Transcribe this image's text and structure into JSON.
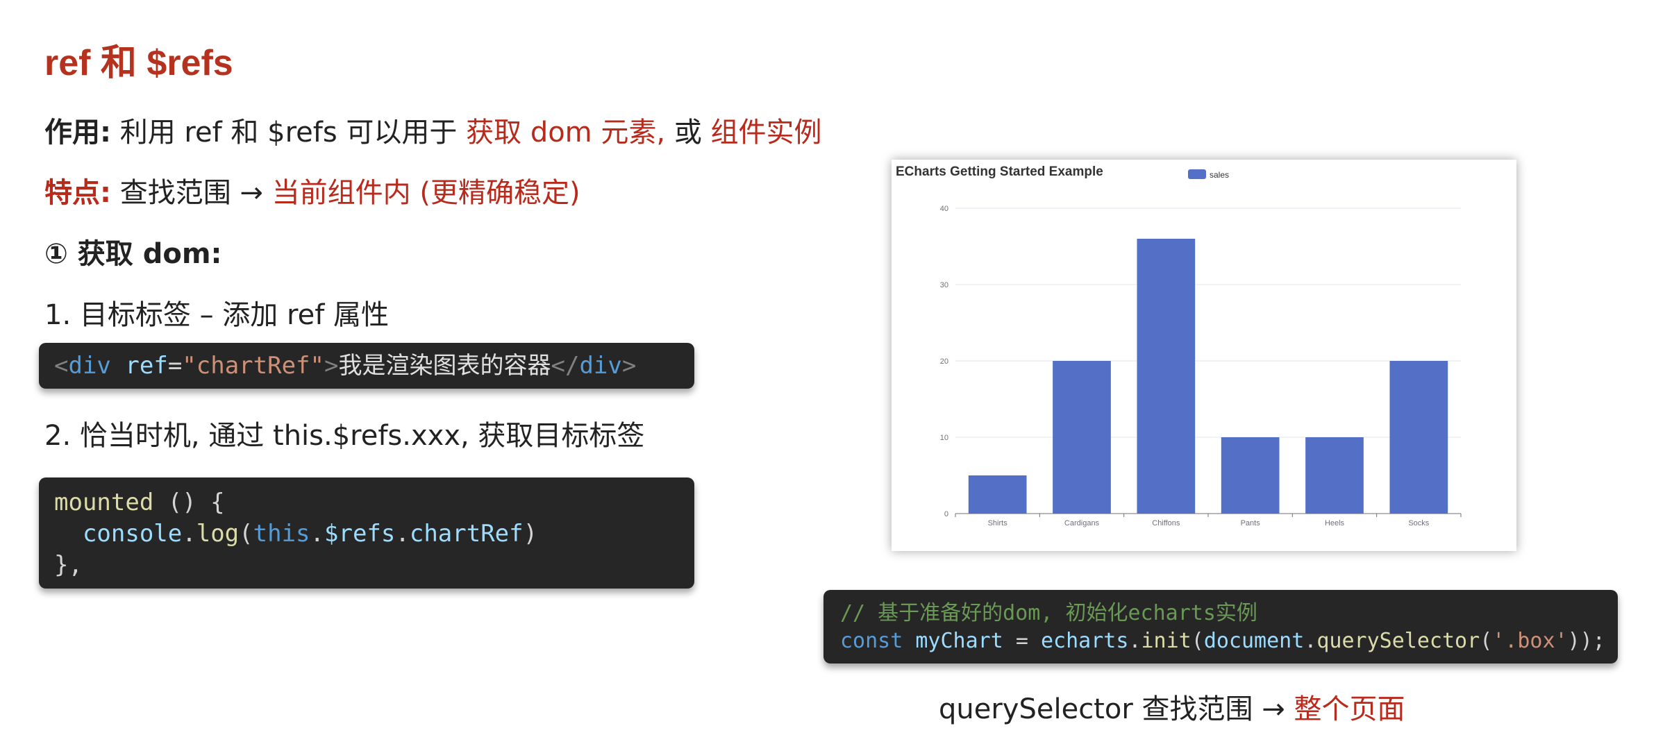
{
  "title": "ref 和 $refs",
  "usage": {
    "label": "作用:",
    "text": "利用 ref 和 $refs 可以用于",
    "highlight1": "获取 dom 元素,",
    "connector": "或",
    "highlight2": "组件实例"
  },
  "feature": {
    "label": "特点:",
    "text": "查找范围 →",
    "highlight": "当前组件内 (更精确稳定)"
  },
  "section": {
    "heading": "① 获取 dom:"
  },
  "step1": {
    "text": "1. 目标标签 – 添加 ref 属性"
  },
  "code1": {
    "lt": "<",
    "tag": "div",
    "attr": "ref",
    "eq": "=",
    "value": "\"chartRef\"",
    "gt": ">",
    "content": "我是渲染图表的容器",
    "close_lt": "</",
    "close_tag": "div",
    "close_gt": ">"
  },
  "step2": {
    "text": "2. 恰当时机, 通过 this.$refs.xxx, 获取目标标签"
  },
  "code2": {
    "line1_fn": "mounted",
    "line1_rest": " () {",
    "line2_indent": "  ",
    "line2_obj": "console",
    "line2_dot": ".",
    "line2_fn": "log",
    "line2_paren": "(",
    "line2_this": "this",
    "line2_dot2": ".",
    "line2_refs": "$refs",
    "line2_dot3": ".",
    "line2_prop": "chartRef",
    "line2_end": ")",
    "line3": "},"
  },
  "code3": {
    "comment": "// 基于准备好的dom, 初始化echarts实例",
    "kw": "const",
    "var": "myChart",
    "eq": " = ",
    "obj": "echarts",
    "dot": ".",
    "fn": "init",
    "paren": "(",
    "doc": "document",
    "dot2": ".",
    "fn2": "querySelector",
    "paren2": "(",
    "str": "'.box'",
    "end": "));"
  },
  "bottom_note": {
    "text": "querySelector 查找范围 →",
    "highlight": "整个页面"
  },
  "chart_data": {
    "type": "bar",
    "title": "ECharts Getting Started Example",
    "categories": [
      "Shirts",
      "Cardigans",
      "Chiffons",
      "Pants",
      "Heels",
      "Socks"
    ],
    "series": [
      {
        "name": "sales",
        "values": [
          5,
          20,
          36,
          10,
          10,
          20
        ]
      }
    ],
    "ylim": [
      0,
      40
    ],
    "yticks": [
      "0",
      "10",
      "20",
      "30",
      "40"
    ],
    "grid": true,
    "legend_position": "top-center",
    "color": "#5470c6"
  },
  "colors": {
    "accent": "#b72a1c",
    "code_bg": "#262626",
    "bar": "#5470c6"
  }
}
